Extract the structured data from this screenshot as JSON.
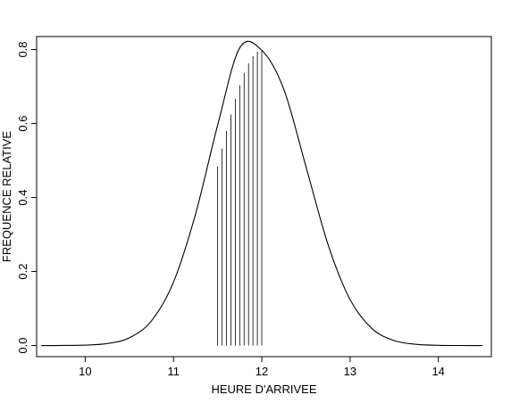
{
  "chart_data": {
    "type": "line",
    "title": "",
    "xlabel": "HEURE D'ARRIVEE",
    "ylabel": "FREQUENCE RELATIVE",
    "xlim": [
      9.45,
      14.6
    ],
    "ylim": [
      -0.03,
      0.835
    ],
    "x_ticks": [
      10,
      11,
      12,
      13,
      14
    ],
    "y_ticks": [
      0.0,
      0.2,
      0.4,
      0.6,
      0.8
    ],
    "x_tick_labels": [
      "10",
      "11",
      "12",
      "13",
      "14"
    ],
    "y_tick_labels": [
      "0.0",
      "0.2",
      "0.4",
      "0.6",
      "0.8"
    ],
    "grid": false,
    "legend": "none",
    "series": [
      {
        "x": [
          9.5,
          9.75,
          10.0,
          10.25,
          10.5,
          10.75,
          11.0,
          11.25,
          11.5,
          11.75,
          12.0,
          12.25,
          12.5,
          12.75,
          13.0,
          13.25,
          13.5,
          13.75,
          14.0,
          14.25,
          14.5
        ],
        "values": [
          0.0,
          0.0002,
          0.0011,
          0.0053,
          0.0209,
          0.0666,
          0.1713,
          0.3554,
          0.5954,
          0.8044,
          0.7979,
          0.692,
          0.4839,
          0.2732,
          0.1242,
          0.0455,
          0.0134,
          0.0032,
          0.0006,
          0.0001,
          0.0
        ]
      }
    ],
    "shaded_region": {
      "x_from": 11.5,
      "x_to": 12.0,
      "line_count": 11
    }
  }
}
